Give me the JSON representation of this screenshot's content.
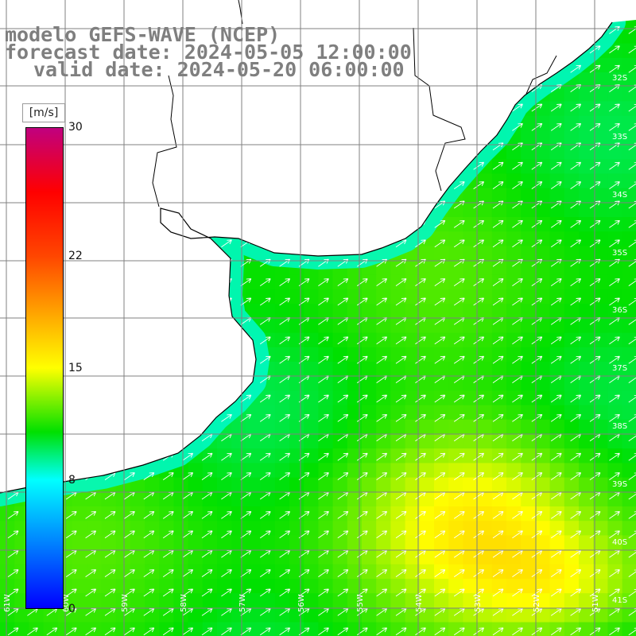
{
  "title": {
    "line1": "modelo GEFS-WAVE (NCEP)",
    "line2": "forecast date: 2024-05-05 12:00:00",
    "line3": "valid date: 2024-05-20 06:00:00"
  },
  "colorbar": {
    "unit": "[m/s]",
    "min": 0,
    "max": 30,
    "ticks": [
      {
        "value": 30,
        "label": "30"
      },
      {
        "value": 22,
        "label": "22"
      },
      {
        "value": 15,
        "label": "15"
      },
      {
        "value": 8,
        "label": "8"
      },
      {
        "value": 0,
        "label": "0"
      }
    ],
    "colors": [
      "#0000ff",
      "#00ffff",
      "#00e000",
      "#ffff00",
      "#ff0000",
      "#c0007f"
    ]
  },
  "map": {
    "lon_labels": [
      "61W",
      "60W",
      "59W",
      "58W",
      "57W",
      "56W",
      "55W",
      "54W",
      "53W",
      "52W",
      "51W"
    ],
    "lat_labels": [
      "32S",
      "33S",
      "34S",
      "35S",
      "36S",
      "37S",
      "38S",
      "39S",
      "40S",
      "41S"
    ],
    "land_color": "#ffffff",
    "grid_color": "#808080",
    "arrow_color": "#ffffff",
    "wind_direction": "toward north-east"
  }
}
